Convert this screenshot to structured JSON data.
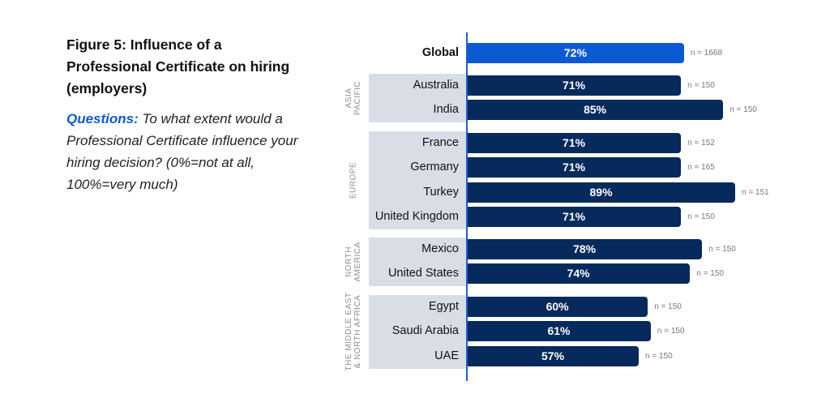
{
  "title": "Figure 5: Influence of a Professional Certificate on hiring (employers)",
  "question_label": "Questions:",
  "question_text": "To what extent would a Professional Certificate influence your hiring decision? (0%=not at all, 100%=very much)",
  "colors": {
    "global": "#0a5ad4",
    "bar": "#062a5c",
    "panel": "#d9dee6",
    "accent": "#0a5ad4"
  },
  "chart_data": {
    "type": "bar",
    "orientation": "horizontal",
    "title": "Figure 5: Influence of a Professional Certificate on hiring (employers)",
    "xlim": [
      0,
      100
    ],
    "groups": [
      {
        "name": "",
        "rows": [
          {
            "label": "Global",
            "value": 72,
            "value_label": "72%",
            "n": "n = 1668"
          }
        ]
      },
      {
        "name": "ASIA PACIFIC",
        "lines": [
          "ASIA",
          "PACIFIC"
        ],
        "rows": [
          {
            "label": "Australia",
            "value": 71,
            "value_label": "71%",
            "n": "n = 150"
          },
          {
            "label": "India",
            "value": 85,
            "value_label": "85%",
            "n": "n = 150"
          }
        ]
      },
      {
        "name": "EUROPE",
        "lines": [
          "EUROPE"
        ],
        "rows": [
          {
            "label": "France",
            "value": 71,
            "value_label": "71%",
            "n": "n = 152"
          },
          {
            "label": "Germany",
            "value": 71,
            "value_label": "71%",
            "n": "n = 165"
          },
          {
            "label": "Turkey",
            "value": 89,
            "value_label": "89%",
            "n": "n = 151"
          },
          {
            "label": "United Kingdom",
            "value": 71,
            "value_label": "71%",
            "n": "n = 150"
          }
        ]
      },
      {
        "name": "NORTH AMERICA",
        "lines": [
          "NORTH",
          "AMERICA"
        ],
        "rows": [
          {
            "label": "Mexico",
            "value": 78,
            "value_label": "78%",
            "n": "n = 150"
          },
          {
            "label": "United States",
            "value": 74,
            "value_label": "74%",
            "n": "n = 150"
          }
        ]
      },
      {
        "name": "THE MIDDLE EAST & NORTH AFRICA",
        "lines": [
          "THE MIDDLE EAST",
          "& NORTH AFRICA"
        ],
        "rows": [
          {
            "label": "Egypt",
            "value": 60,
            "value_label": "60%",
            "n": "n = 150"
          },
          {
            "label": "Saudi Arabia",
            "value": 61,
            "value_label": "61%",
            "n": "n = 150"
          },
          {
            "label": "UAE",
            "value": 57,
            "value_label": "57%",
            "n": "n = 150"
          }
        ]
      }
    ]
  }
}
